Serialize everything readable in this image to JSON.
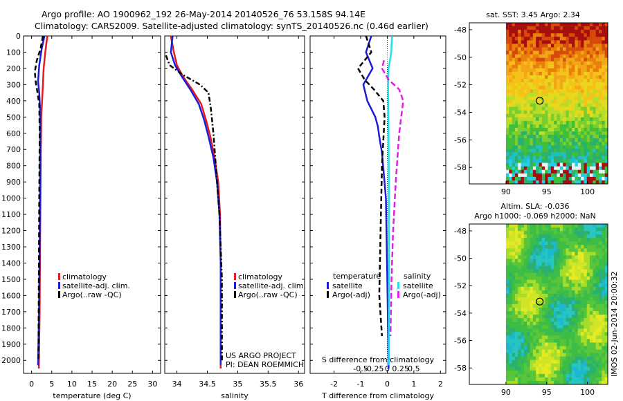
{
  "header": {
    "title_line1": "Argo profile: AO 1900962_192 26-May-2014 20140526_76 53.158S 94.14E",
    "title_line2": "Climatology: CARS2009. Satellite-adjusted climatology: synTS_20140526.nc (0.46d earlier)"
  },
  "footer": {
    "project": "US ARGO PROJECT",
    "pi": "PI: DEAN ROEMMICH",
    "imos": "IMOS 02-Jun-2014 20:00:32"
  },
  "colors": {
    "climatology": "#e41a1c",
    "satellite": "#1c1cd6",
    "argo": "#000000",
    "satellite_s": "#22e0e6",
    "argo_s": "#e11ee6"
  },
  "chart_data": [
    {
      "id": "temperature",
      "type": "line",
      "xlabel": "temperature (deg C)",
      "ylabel": "",
      "xlim": [
        -2,
        32
      ],
      "ylim": [
        2080,
        0
      ],
      "xticks": [
        "0",
        "5",
        "10",
        "15",
        "20",
        "25",
        "30"
      ],
      "xtick_values": [
        0,
        5,
        10,
        15,
        20,
        25,
        30
      ],
      "yticks": [
        "0",
        "100",
        "200",
        "300",
        "400",
        "500",
        "600",
        "700",
        "800",
        "900",
        "1000",
        "1100",
        "1200",
        "1300",
        "1400",
        "1500",
        "1600",
        "1700",
        "1800",
        "1900",
        "2000"
      ],
      "ytick_values": [
        0,
        100,
        200,
        300,
        400,
        500,
        600,
        700,
        800,
        900,
        1000,
        1100,
        1200,
        1300,
        1400,
        1500,
        1600,
        1700,
        1800,
        1900,
        2000
      ],
      "legend": [
        "climatology",
        "satellite-adj. clim.",
        "Argo(..raw -QC)"
      ],
      "series": [
        {
          "name": "climatology",
          "color": "#e41a1c",
          "dash": "",
          "x": [
            3.9,
            3.4,
            3.0,
            2.8,
            2.6,
            2.4,
            2.3,
            2.2,
            2.1,
            2.0,
            1.8
          ],
          "y": [
            0,
            100,
            200,
            300,
            400,
            500,
            700,
            1000,
            1300,
            1700,
            2050
          ]
        },
        {
          "name": "satellite-adj. clim.",
          "color": "#1c1cd6",
          "dash": "",
          "x": [
            3.2,
            2.5,
            1.9,
            1.6,
            1.9,
            2.1,
            2.15,
            2.1,
            2.0,
            1.85,
            1.6
          ],
          "y": [
            0,
            80,
            180,
            280,
            350,
            450,
            600,
            900,
            1300,
            1700,
            2030
          ]
        },
        {
          "name": "Argo(..raw -QC)",
          "color": "#000000",
          "dash": "7,4",
          "x": [
            2.8,
            2.2,
            1.3,
            0.8,
            1.0,
            1.4,
            1.9,
            2.0,
            1.9,
            1.8,
            1.7
          ],
          "y": [
            0,
            80,
            150,
            220,
            280,
            340,
            420,
            600,
            1000,
            1500,
            2000
          ]
        }
      ]
    },
    {
      "id": "salinity",
      "type": "line",
      "xlabel": "salinity",
      "ylabel": "",
      "xlim": [
        33.8,
        36.1
      ],
      "ylim": [
        2080,
        0
      ],
      "xticks": [
        "34",
        "34.5",
        "35",
        "35.5",
        "36"
      ],
      "xtick_values": [
        34,
        34.5,
        35,
        35.5,
        36
      ],
      "legend": [
        "climatology",
        "satellite-adj. clim.",
        "Argo(..raw -QC)"
      ],
      "series": [
        {
          "name": "climatology",
          "color": "#e41a1c",
          "dash": "",
          "x": [
            33.9,
            33.95,
            34.0,
            34.1,
            34.25,
            34.4,
            34.48,
            34.55,
            34.62,
            34.68,
            34.71,
            34.72,
            34.72,
            34.72
          ],
          "y": [
            0,
            100,
            180,
            250,
            330,
            420,
            520,
            620,
            750,
            900,
            1100,
            1400,
            1700,
            2050
          ]
        },
        {
          "name": "satellite-adj. clim.",
          "color": "#1c1cd6",
          "dash": "",
          "x": [
            33.93,
            33.9,
            33.97,
            34.08,
            34.22,
            34.36,
            34.45,
            34.52,
            34.6,
            34.66,
            34.7,
            34.72,
            34.72,
            34.72
          ],
          "y": [
            0,
            100,
            180,
            250,
            330,
            420,
            520,
            620,
            750,
            900,
            1100,
            1400,
            1700,
            2030
          ]
        },
        {
          "name": "Argo(..raw -QC)",
          "color": "#000000",
          "dash": "7,3,2,3",
          "x": [
            33.82,
            33.88,
            34.1,
            34.38,
            34.52,
            34.56,
            34.6,
            34.64,
            34.7,
            34.74,
            34.74
          ],
          "y": [
            120,
            180,
            240,
            300,
            350,
            450,
            600,
            800,
            1100,
            1500,
            2000
          ]
        }
      ]
    },
    {
      "id": "difference",
      "type": "line",
      "xlabel": "T difference from climatology",
      "xlabel_top": "S difference from climatology",
      "xlim": [
        -2.9,
        2.2
      ],
      "ylim": [
        2080,
        0
      ],
      "xticks": [
        "-2",
        "-1",
        "0",
        "1",
        "2"
      ],
      "xtick_values": [
        -2,
        -1,
        0,
        1,
        2
      ],
      "xticks_s": [
        "-0.5",
        "-0.25",
        "0",
        "0.25",
        "0.5"
      ],
      "xticks_s_values": [
        -0.5,
        -0.25,
        0,
        0.25,
        0.5
      ],
      "legend_titles": [
        "temperature",
        "salinity"
      ],
      "legend": [
        "satellite",
        "Argo(-adj)",
        "satellite",
        "Argo(-adj)"
      ],
      "series": [
        {
          "name": "satellite",
          "color": "#1c1cd6",
          "dash": "",
          "x": [
            -0.6,
            -0.8,
            -0.55,
            -0.9,
            -0.75,
            -0.45,
            -0.35,
            -0.3,
            -0.2,
            -0.05,
            0.0,
            0.05
          ],
          "y": [
            0,
            100,
            200,
            300,
            400,
            500,
            560,
            620,
            720,
            1000,
            1500,
            2050
          ]
        },
        {
          "name": "Argo(-adj)",
          "color": "#000000",
          "dash": "7,4",
          "x": [
            -0.8,
            -0.6,
            -1.1,
            -0.85,
            -0.5,
            -0.15,
            -0.1,
            -0.2,
            -0.25,
            -0.3,
            -0.2
          ],
          "y": [
            0,
            100,
            200,
            270,
            330,
            400,
            500,
            800,
            1200,
            1600,
            1850
          ]
        },
        {
          "name": "satellite",
          "color": "#22e0e6",
          "dash": "",
          "x": [
            0.18,
            0.15,
            0.05,
            0.03,
            0.04,
            0.05,
            0.06,
            0.06,
            0.06
          ],
          "y": [
            0,
            100,
            200,
            300,
            400,
            600,
            1000,
            1500,
            2030
          ]
        },
        {
          "name": "Argo(-adj)",
          "color": "#e11ee6",
          "dash": "8,4",
          "x": [
            -0.12,
            -0.2,
            0.05,
            0.45,
            0.6,
            0.45,
            0.32,
            0.22,
            0.16,
            0.12
          ],
          "y": [
            150,
            200,
            270,
            330,
            400,
            600,
            900,
            1200,
            1500,
            1850
          ]
        }
      ]
    },
    {
      "id": "sst-map",
      "type": "heatmap",
      "title": "sat. SST: 3.45 Argo: 2.34",
      "xlim": [
        85.5,
        102.5
      ],
      "ylim": [
        -59.2,
        -47.5
      ],
      "xticks": [
        "90",
        "95",
        "100"
      ],
      "xtick_values": [
        90,
        95,
        100
      ],
      "yticks": [
        "-48",
        "-50",
        "-52",
        "-54",
        "-56",
        "-58"
      ],
      "ytick_values": [
        -48,
        -50,
        -52,
        -54,
        -56,
        -58
      ],
      "data_lon_start": 90,
      "marker": [
        94.14,
        -53.158
      ]
    },
    {
      "id": "sla-map",
      "type": "heatmap",
      "title": "Altim. SLA: -0.036",
      "subtitle": "Argo h1000: -0.069 h2000: NaN",
      "xlim": [
        85.5,
        102.5
      ],
      "ylim": [
        -59.2,
        -47.5
      ],
      "xticks": [
        "90",
        "95",
        "100"
      ],
      "xtick_values": [
        90,
        95,
        100
      ],
      "yticks": [
        "-48",
        "-50",
        "-52",
        "-54",
        "-56",
        "-58"
      ],
      "ytick_values": [
        -48,
        -50,
        -52,
        -54,
        -56,
        -58
      ],
      "data_lon_start": 90,
      "marker": [
        94.14,
        -53.158
      ]
    }
  ]
}
